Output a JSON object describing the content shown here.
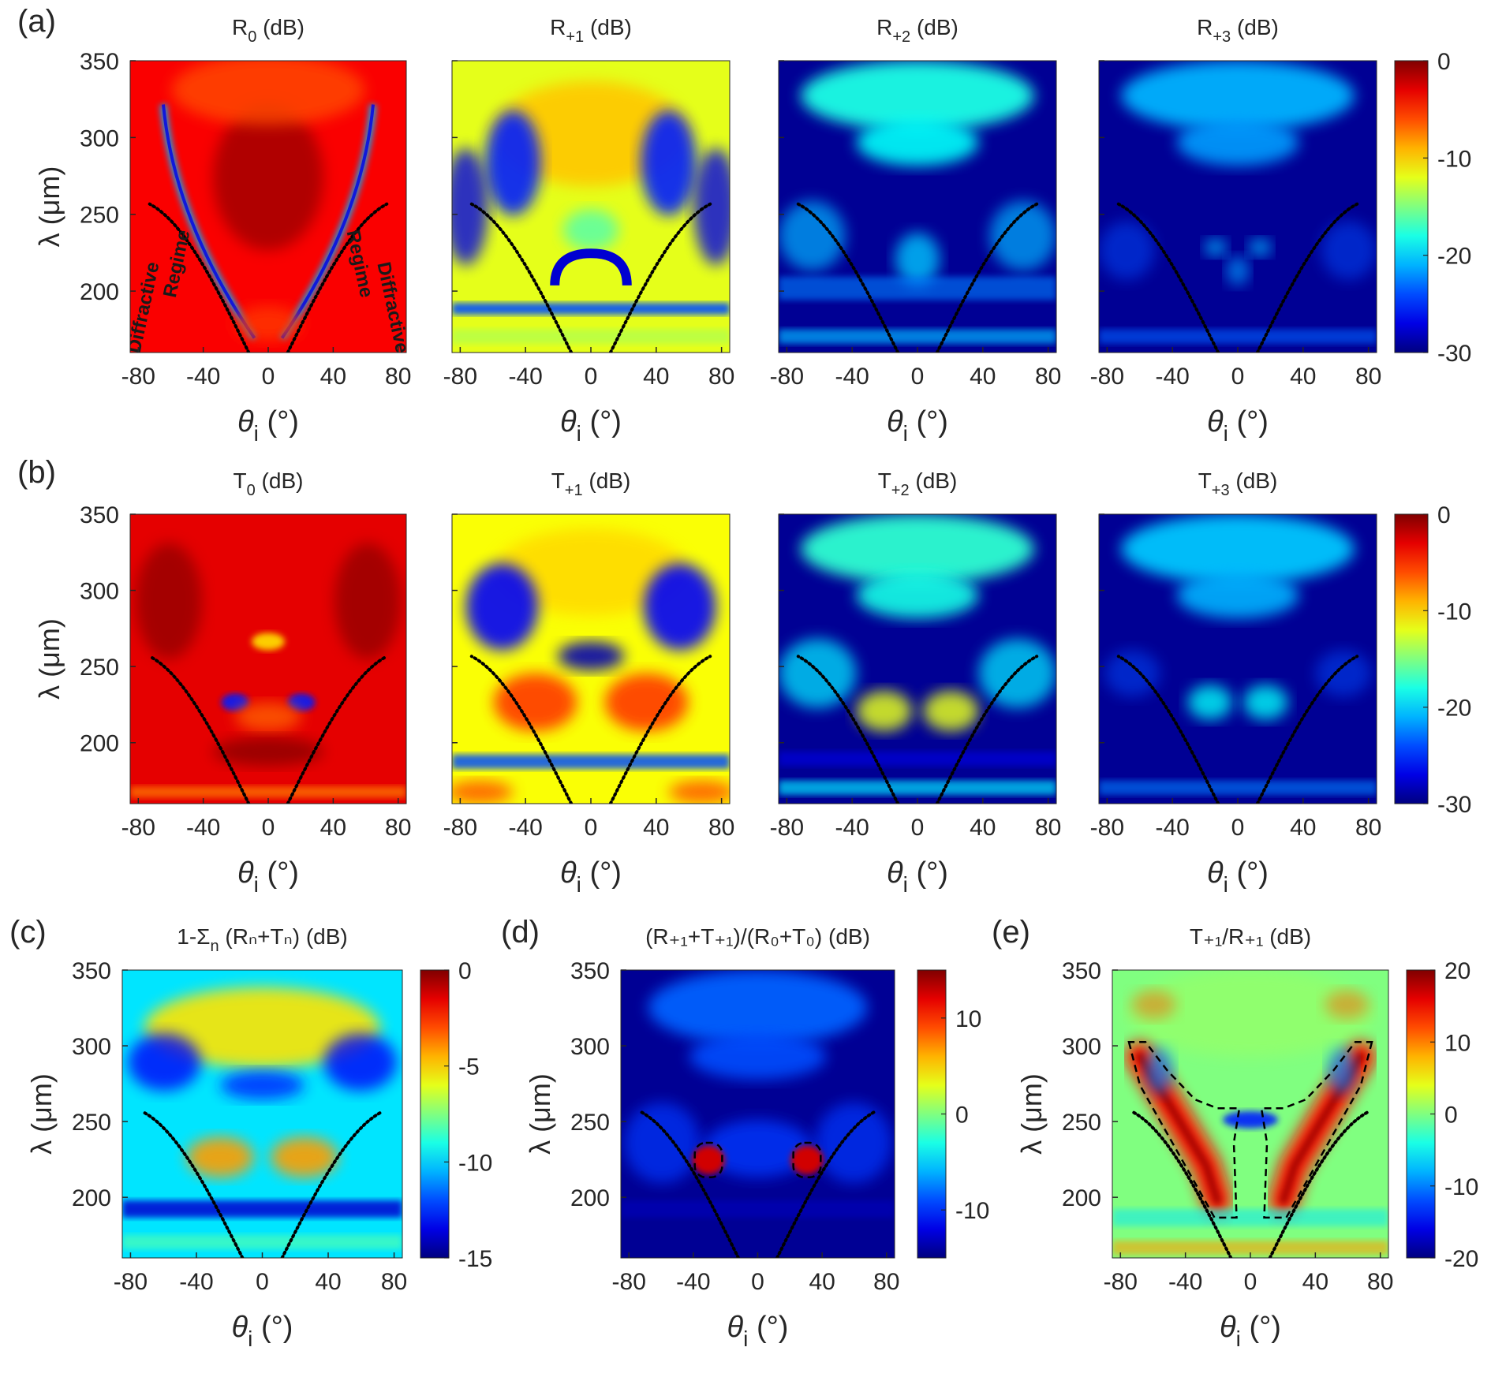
{
  "figure": {
    "colormap": "jet",
    "boundary_curve_style": "black dotted",
    "contour_style": "black dashed",
    "annotations": [
      "Diffractive",
      "Regime",
      "Regime",
      "Diffractive"
    ]
  },
  "chart_data": [
    {
      "id": "a1",
      "type": "heatmap",
      "panel_label": "(a)",
      "title": "R",
      "title_sub": "0",
      "title_suffix": " (dB)",
      "x_label_text": "θ",
      "x_label_sub": "i",
      "x_label_unit": " (°)",
      "x_tick_labels": [
        "-80",
        "-40",
        "0",
        "40",
        "80"
      ],
      "xlim": [
        -85,
        85
      ],
      "y_label": "λ (μm)",
      "y_tick_labels": [
        "350",
        "300",
        "250",
        "200"
      ],
      "ylim": [
        160,
        350
      ],
      "dotted_boundary": true,
      "colorbar": null
    },
    {
      "id": "a2",
      "type": "heatmap",
      "panel_label": "",
      "title": "R",
      "title_sub": "+1",
      "title_suffix": " (dB)",
      "x_label_text": "θ",
      "x_label_sub": "i",
      "x_label_unit": " (°)",
      "x_tick_labels": [
        "-80",
        "-40",
        "0",
        "40",
        "80"
      ],
      "xlim": [
        -85,
        85
      ],
      "y_label": "",
      "y_tick_labels": [],
      "ylim": [
        160,
        350
      ],
      "dotted_boundary": true,
      "colorbar": null
    },
    {
      "id": "a3",
      "type": "heatmap",
      "panel_label": "",
      "title": "R",
      "title_sub": "+2",
      "title_suffix": " (dB)",
      "x_label_text": "θ",
      "x_label_sub": "i",
      "x_label_unit": " (°)",
      "x_tick_labels": [
        "-80",
        "-40",
        "0",
        "40",
        "80"
      ],
      "xlim": [
        -85,
        85
      ],
      "y_label": "",
      "y_tick_labels": [],
      "ylim": [
        160,
        350
      ],
      "dotted_boundary": true,
      "colorbar": null
    },
    {
      "id": "a4",
      "type": "heatmap",
      "panel_label": "",
      "title": "R",
      "title_sub": "+3",
      "title_suffix": " (dB)",
      "x_label_text": "θ",
      "x_label_sub": "i",
      "x_label_unit": " (°)",
      "x_tick_labels": [
        "-80",
        "-40",
        "0",
        "40",
        "80"
      ],
      "xlim": [
        -85,
        85
      ],
      "y_label": "",
      "y_tick_labels": [],
      "ylim": [
        160,
        350
      ],
      "dotted_boundary": true,
      "colorbar": {
        "range": [
          -30,
          0
        ],
        "tick_labels": [
          "0",
          "-10",
          "-20",
          "-30"
        ]
      }
    },
    {
      "id": "b1",
      "type": "heatmap",
      "panel_label": "(b)",
      "title": "T",
      "title_sub": "0",
      "title_suffix": " (dB)",
      "x_label_text": "θ",
      "x_label_sub": "i",
      "x_label_unit": " (°)",
      "x_tick_labels": [
        "-80",
        "-40",
        "0",
        "40",
        "80"
      ],
      "xlim": [
        -85,
        85
      ],
      "y_label": "λ (μm)",
      "y_tick_labels": [
        "350",
        "300",
        "250",
        "200"
      ],
      "ylim": [
        160,
        350
      ],
      "dotted_boundary": true,
      "colorbar": null
    },
    {
      "id": "b2",
      "type": "heatmap",
      "panel_label": "",
      "title": "T",
      "title_sub": "+1",
      "title_suffix": " (dB)",
      "x_label_text": "θ",
      "x_label_sub": "i",
      "x_label_unit": " (°)",
      "x_tick_labels": [
        "-80",
        "-40",
        "0",
        "40",
        "80"
      ],
      "xlim": [
        -85,
        85
      ],
      "y_label": "",
      "y_tick_labels": [],
      "ylim": [
        160,
        350
      ],
      "dotted_boundary": true,
      "colorbar": null
    },
    {
      "id": "b3",
      "type": "heatmap",
      "panel_label": "",
      "title": "T",
      "title_sub": "+2",
      "title_suffix": " (dB)",
      "x_label_text": "θ",
      "x_label_sub": "i",
      "x_label_unit": " (°)",
      "x_tick_labels": [
        "-80",
        "-40",
        "0",
        "40",
        "80"
      ],
      "xlim": [
        -85,
        85
      ],
      "y_label": "",
      "y_tick_labels": [],
      "ylim": [
        160,
        350
      ],
      "dotted_boundary": true,
      "colorbar": null
    },
    {
      "id": "b4",
      "type": "heatmap",
      "panel_label": "",
      "title": "T",
      "title_sub": "+3",
      "title_suffix": " (dB)",
      "x_label_text": "θ",
      "x_label_sub": "i",
      "x_label_unit": " (°)",
      "x_tick_labels": [
        "-80",
        "-40",
        "0",
        "40",
        "80"
      ],
      "xlim": [
        -85,
        85
      ],
      "y_label": "",
      "y_tick_labels": [],
      "ylim": [
        160,
        350
      ],
      "dotted_boundary": true,
      "colorbar": {
        "range": [
          -30,
          0
        ],
        "tick_labels": [
          "0",
          "-10",
          "-20",
          "-30"
        ]
      }
    },
    {
      "id": "c",
      "type": "heatmap",
      "panel_label": "(c)",
      "title": "1-Σ",
      "title_sub": "n",
      "title_suffix": " (Rₙ+Tₙ) (dB)",
      "x_label_text": "θ",
      "x_label_sub": "i",
      "x_label_unit": " (°)",
      "x_tick_labels": [
        "-80",
        "-40",
        "0",
        "40",
        "80"
      ],
      "xlim": [
        -85,
        85
      ],
      "y_label": "λ (μm)",
      "y_tick_labels": [
        "350",
        "300",
        "250",
        "200"
      ],
      "ylim": [
        160,
        350
      ],
      "dotted_boundary": true,
      "colorbar": {
        "range": [
          -15,
          0
        ],
        "tick_labels": [
          "0",
          "-5",
          "-10",
          "-15"
        ]
      }
    },
    {
      "id": "d",
      "type": "heatmap",
      "panel_label": "(d)",
      "title": "(R₊₁+T₊₁)/(R₀+T₀)",
      "title_sub": "",
      "title_suffix": " (dB)",
      "x_label_text": "θ",
      "x_label_sub": "i",
      "x_label_unit": " (°)",
      "x_tick_labels": [
        "-80",
        "-40",
        "0",
        "40",
        "80"
      ],
      "xlim": [
        -85,
        85
      ],
      "y_label": "λ (μm)",
      "y_tick_labels": [
        "350",
        "300",
        "250",
        "200"
      ],
      "ylim": [
        160,
        350
      ],
      "dotted_boundary": true,
      "colorbar": {
        "range": [
          -15,
          15
        ],
        "tick_labels": [
          "10",
          "0",
          "-10"
        ]
      }
    },
    {
      "id": "e",
      "type": "heatmap",
      "panel_label": "(e)",
      "title": "T₊₁/R₊₁",
      "title_sub": "",
      "title_suffix": " (dB)",
      "x_label_text": "θ",
      "x_label_sub": "i",
      "x_label_unit": " (°)",
      "x_tick_labels": [
        "-80",
        "-40",
        "0",
        "40",
        "80"
      ],
      "xlim": [
        -85,
        85
      ],
      "y_label": "λ (μm)",
      "y_tick_labels": [
        "350",
        "300",
        "250",
        "200"
      ],
      "ylim": [
        160,
        350
      ],
      "dotted_boundary": true,
      "colorbar": {
        "range": [
          -20,
          20
        ],
        "tick_labels": [
          "20",
          "10",
          "0",
          "-10",
          "-20"
        ]
      }
    }
  ]
}
